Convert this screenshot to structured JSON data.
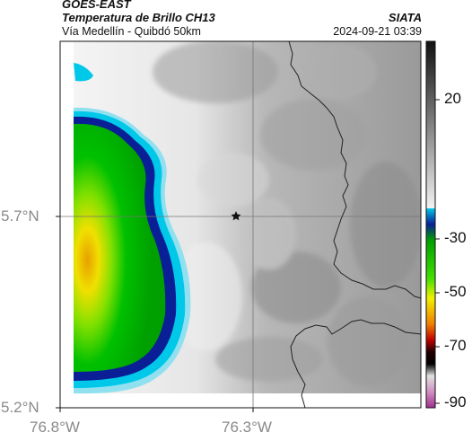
{
  "header": {
    "satellite": "GOES-EAST",
    "product": "Temperatura de Brillo CH13",
    "region": "Vía Medellín - Quibdó 50km",
    "org": "SIATA",
    "datetime": "2024-09-21 03:39"
  },
  "map": {
    "lat_ticks": [
      "5.7°N",
      "5.2°N"
    ],
    "lon_ticks": [
      "76.8°W",
      "76.3°W"
    ],
    "marker_icon": "star-icon"
  },
  "colorbar": {
    "labels": [
      "20",
      "-30",
      "-50",
      "-70",
      "-90"
    ],
    "colors": {
      "warm_gray_top": "#111111",
      "warm_gray_bottom": "#f2f2f2",
      "cyan": "#00c8e8",
      "blue": "#0a1e96",
      "green": "#00c000",
      "yellow": "#f0f000",
      "orange": "#f08000",
      "red": "#c00000",
      "black": "#000000",
      "magenta": "#b040a0"
    }
  }
}
